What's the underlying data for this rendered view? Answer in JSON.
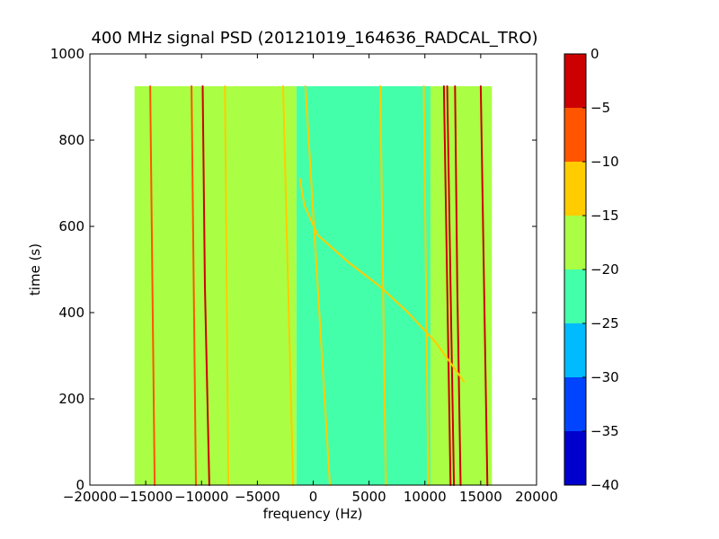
{
  "chart_data": {
    "type": "heatmap",
    "title": "400 MHz signal PSD (20121019_164636_RADCAL_TRO)",
    "xlabel": "frequency (Hz)",
    "ylabel": "time (s)",
    "xlim": [
      -20000,
      20000
    ],
    "ylim": [
      0,
      1000
    ],
    "xticks": [
      -20000,
      -15000,
      -10000,
      -5000,
      0,
      5000,
      10000,
      15000,
      20000
    ],
    "yticks": [
      0,
      200,
      400,
      600,
      800,
      1000
    ],
    "data_extent": {
      "x": [
        -16000,
        16000
      ],
      "y": [
        0,
        925
      ]
    },
    "colorbar": {
      "ticks": [
        -40,
        -35,
        -30,
        -25,
        -20,
        -15,
        -10,
        -5,
        0
      ],
      "levels": [
        {
          "range": [
            -40,
            -35
          ],
          "color": "#0000cc"
        },
        {
          "range": [
            -35,
            -30
          ],
          "color": "#0044ff"
        },
        {
          "range": [
            -30,
            -25
          ],
          "color": "#00bbff"
        },
        {
          "range": [
            -25,
            -20
          ],
          "color": "#44ffaa"
        },
        {
          "range": [
            -20,
            -15
          ],
          "color": "#aaff44"
        },
        {
          "range": [
            -15,
            -10
          ],
          "color": "#ffcc00"
        },
        {
          "range": [
            -10,
            -5
          ],
          "color": "#ff5500"
        },
        {
          "range": [
            -5,
            0
          ],
          "color": "#cc0000"
        }
      ]
    },
    "regions": [
      {
        "x": [
          -16000,
          -1500
        ],
        "level": "-20 to -15"
      },
      {
        "x": [
          -1500,
          10500
        ],
        "level": "-25 to -20"
      },
      {
        "x": [
          10500,
          16000
        ],
        "level": "-20 to -15"
      }
    ],
    "lines": [
      {
        "level": "-5 to 0",
        "points": [
          [
            -9300,
            0
          ],
          [
            -9700,
            460
          ],
          [
            -9900,
            925
          ]
        ]
      },
      {
        "level": "-10 to -5",
        "points": [
          [
            -14200,
            0
          ],
          [
            -14600,
            925
          ]
        ]
      },
      {
        "level": "-10 to -5",
        "points": [
          [
            -10500,
            0
          ],
          [
            -10900,
            925
          ]
        ]
      },
      {
        "level": "-15 to -10",
        "points": [
          [
            -7600,
            0
          ],
          [
            -7900,
            925
          ]
        ]
      },
      {
        "level": "-15 to -10",
        "points": [
          [
            -1800,
            0
          ],
          [
            -2700,
            925
          ]
        ]
      },
      {
        "level": "-15 to -10",
        "points": [
          [
            1500,
            0
          ],
          [
            -700,
            925
          ]
        ]
      },
      {
        "level": "-15 to -10",
        "points": [
          [
            6500,
            0
          ],
          [
            6000,
            925
          ]
        ]
      },
      {
        "level": "-15 to -10",
        "points": [
          [
            10300,
            0
          ],
          [
            9900,
            925
          ]
        ]
      },
      {
        "level": "-5 to 0",
        "points": [
          [
            12300,
            0
          ],
          [
            12000,
            460
          ],
          [
            11700,
            925
          ]
        ]
      },
      {
        "level": "-5 to 0",
        "points": [
          [
            12600,
            0
          ],
          [
            12300,
            460
          ],
          [
            12000,
            925
          ]
        ]
      },
      {
        "level": "-5 to 0",
        "points": [
          [
            13200,
            0
          ],
          [
            12900,
            460
          ],
          [
            12700,
            925
          ]
        ]
      },
      {
        "level": "-5 to 0",
        "points": [
          [
            15600,
            0
          ],
          [
            15300,
            460
          ],
          [
            15000,
            925
          ]
        ]
      },
      {
        "level": "-15 to -10",
        "points": [
          [
            -1200,
            710
          ],
          [
            -800,
            650
          ],
          [
            400,
            580
          ],
          [
            3000,
            520
          ],
          [
            6000,
            460
          ],
          [
            8500,
            400
          ],
          [
            11000,
            330
          ],
          [
            13500,
            240
          ]
        ]
      }
    ]
  }
}
